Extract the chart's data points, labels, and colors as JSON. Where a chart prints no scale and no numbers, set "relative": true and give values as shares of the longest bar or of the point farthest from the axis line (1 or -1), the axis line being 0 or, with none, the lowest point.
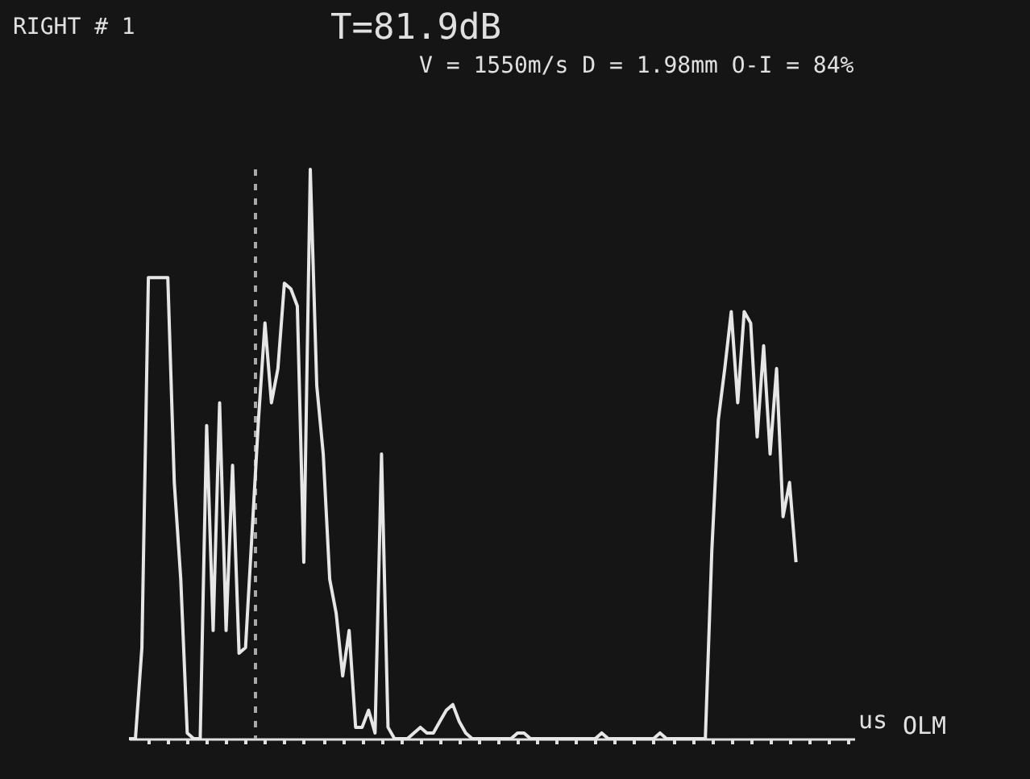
{
  "chart_data": {
    "type": "line",
    "relative": true,
    "xlabel": "us",
    "annotations": [
      "RIGHT # 1",
      "T=81.9dB",
      "V = 1550m/s D = 1.98mm O-I = 84%",
      "OLM"
    ],
    "categories": [
      null,
      null,
      null,
      null,
      null,
      null,
      null,
      null,
      null,
      null,
      null,
      null,
      null,
      null,
      null,
      null,
      null,
      null,
      null,
      null,
      null,
      null,
      null,
      null,
      null,
      null,
      null,
      null,
      null,
      null,
      null,
      null,
      null,
      null,
      null,
      null,
      null,
      null,
      null,
      null,
      null,
      null,
      null,
      null,
      null,
      null,
      null,
      null,
      null,
      null,
      null,
      null,
      null,
      null,
      null,
      null,
      null,
      null,
      null,
      null,
      null,
      null,
      null,
      null,
      null,
      null,
      null,
      null,
      null,
      null,
      null,
      null,
      null,
      null,
      null,
      null,
      null,
      null,
      null,
      null,
      null,
      null,
      null,
      null,
      null,
      null,
      null,
      null,
      null,
      null,
      null,
      null,
      null,
      null,
      null,
      null,
      null,
      null,
      null,
      null,
      null,
      null,
      null,
      null,
      null,
      null,
      null,
      null,
      null,
      null,
      null,
      null,
      null
    ],
    "series": [
      {
        "color": "#e6e6e6",
        "values": [
          0,
          0,
          0.16,
          0.81,
          0.81,
          0.81,
          0.81,
          0.45,
          0.28,
          0.01,
          0,
          0,
          0.55,
          0.19,
          0.59,
          0.19,
          0.48,
          0.15,
          0.16,
          0.36,
          0.56,
          0.73,
          0.59,
          0.65,
          0.8,
          0.79,
          0.76,
          0.31,
          1,
          0.62,
          0.5,
          0.28,
          0.22,
          0.11,
          0.19,
          0.02,
          0.02,
          0.05,
          0.01,
          0.5,
          0.02,
          0,
          0,
          0,
          0.01,
          0.02,
          0.01,
          0.01,
          0.03,
          0.05,
          0.06,
          0.03,
          0.01,
          0,
          0,
          0,
          0,
          0,
          0,
          0,
          0.01,
          0.01,
          0,
          0,
          0,
          0,
          0,
          0,
          0,
          0,
          0,
          0,
          0,
          0.01,
          0,
          0,
          0,
          0,
          0,
          0,
          0,
          0,
          0.01,
          0,
          0,
          0,
          0,
          0,
          0,
          0,
          0.33,
          0.56,
          0.65,
          0.75,
          0.59,
          0.75,
          0.73,
          0.53,
          0.69,
          0.5,
          0.65,
          0.39,
          0.45,
          0.31,
          null,
          null,
          null,
          null,
          null,
          null,
          null,
          null,
          null
        ]
      }
    ],
    "marker": "none"
  }
}
